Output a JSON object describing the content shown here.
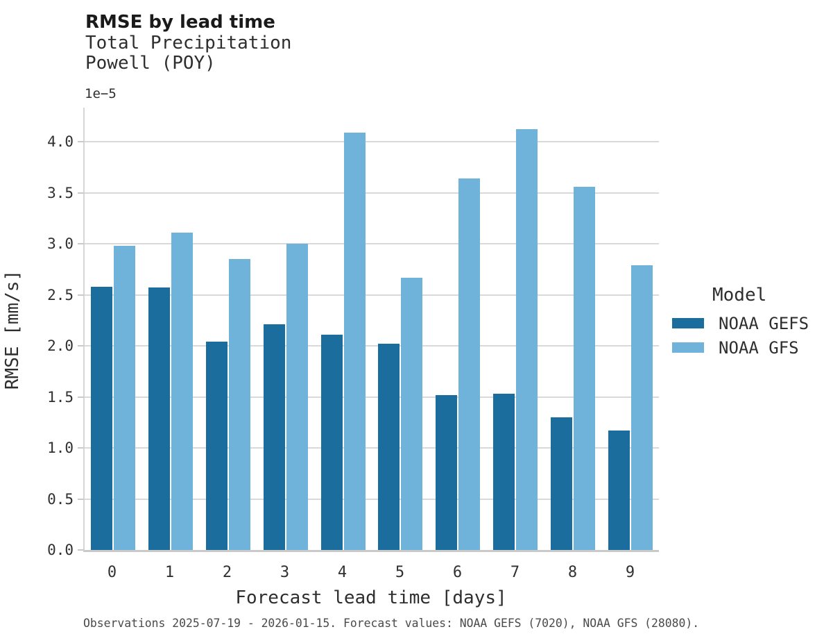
{
  "header": {
    "title": "RMSE by lead time",
    "subtitle_line1": "Total Precipitation",
    "subtitle_line2": "Powell (POY)"
  },
  "axes": {
    "offset_text": "1e−5",
    "ylabel": "RMSE [mm/s]",
    "xlabel": "Forecast lead time [days]"
  },
  "legend": {
    "title": "Model",
    "entries": [
      {
        "label": "NOAA GEFS",
        "color": "#1a6d9c"
      },
      {
        "label": "NOAA GFS",
        "color": "#6fb2da"
      }
    ]
  },
  "caption": "Observations 2025-07-19 - 2026-01-15. Forecast values: NOAA GEFS (7020), NOAA GFS (28080).",
  "chart_data": {
    "type": "bar",
    "title": "RMSE by lead time",
    "subtitle": [
      "Total Precipitation",
      "Powell (POY)"
    ],
    "xlabel": "Forecast lead time [days]",
    "ylabel": "RMSE [mm/s]",
    "y_offset_multiplier": "1e-5",
    "categories": [
      "0",
      "1",
      "2",
      "3",
      "4",
      "5",
      "6",
      "7",
      "8",
      "9"
    ],
    "series": [
      {
        "name": "NOAA GEFS",
        "color": "#1a6d9c",
        "values": [
          2.58,
          2.57,
          2.04,
          2.21,
          2.11,
          2.02,
          1.52,
          1.53,
          1.3,
          1.17
        ]
      },
      {
        "name": "NOAA GFS",
        "color": "#6fb2da",
        "values": [
          2.98,
          3.11,
          2.85,
          3.0,
          4.09,
          2.67,
          3.64,
          4.12,
          3.56,
          2.79
        ]
      }
    ],
    "ylim": [
      0,
      4.354
    ],
    "yticks": [
      0.0,
      0.5,
      1.0,
      1.5,
      2.0,
      2.5,
      3.0,
      3.5,
      4.0
    ],
    "grid": true,
    "legend_position": "center right"
  }
}
